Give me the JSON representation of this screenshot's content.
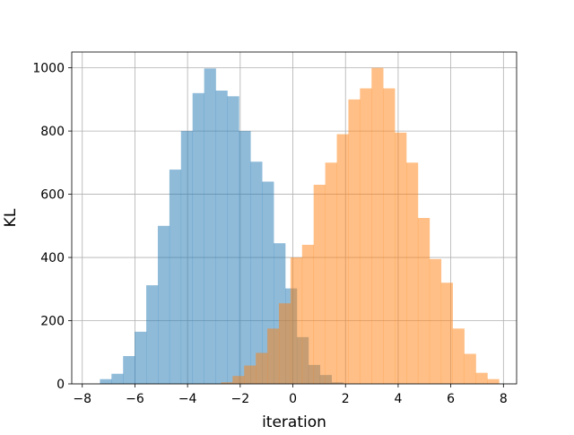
{
  "chart_data": {
    "type": "histogram",
    "xlabel": "iteration",
    "ylabel": "KL",
    "xlim": [
      -8.4,
      8.5
    ],
    "ylim": [
      0,
      1050
    ],
    "grid": true,
    "x_ticks": [
      -8,
      -6,
      -4,
      -2,
      0,
      2,
      4,
      6,
      8
    ],
    "y_ticks": [
      0,
      200,
      400,
      600,
      800,
      1000
    ],
    "x_tick_labels": [
      "−8",
      "−6",
      "−4",
      "−2",
      "0",
      "2",
      "4",
      "6",
      "8"
    ],
    "y_tick_labels": [
      "0",
      "200",
      "400",
      "600",
      "800",
      "1000"
    ],
    "bin_width": 0.44,
    "series": [
      {
        "color": "#1f77b4",
        "alpha": 0.5,
        "bin_start": -7.33,
        "values": [
          15,
          32,
          88,
          165,
          312,
          500,
          678,
          800,
          920,
          998,
          928,
          910,
          800,
          703,
          640,
          445,
          302,
          148,
          60,
          28,
          5
        ]
      },
      {
        "color": "#ff7f0e",
        "alpha": 0.5,
        "bin_start": -2.73,
        "values": [
          5,
          25,
          58,
          98,
          175,
          255,
          400,
          440,
          630,
          700,
          790,
          900,
          935,
          1000,
          935,
          795,
          700,
          525,
          395,
          320,
          175,
          95,
          35,
          15
        ]
      }
    ]
  }
}
